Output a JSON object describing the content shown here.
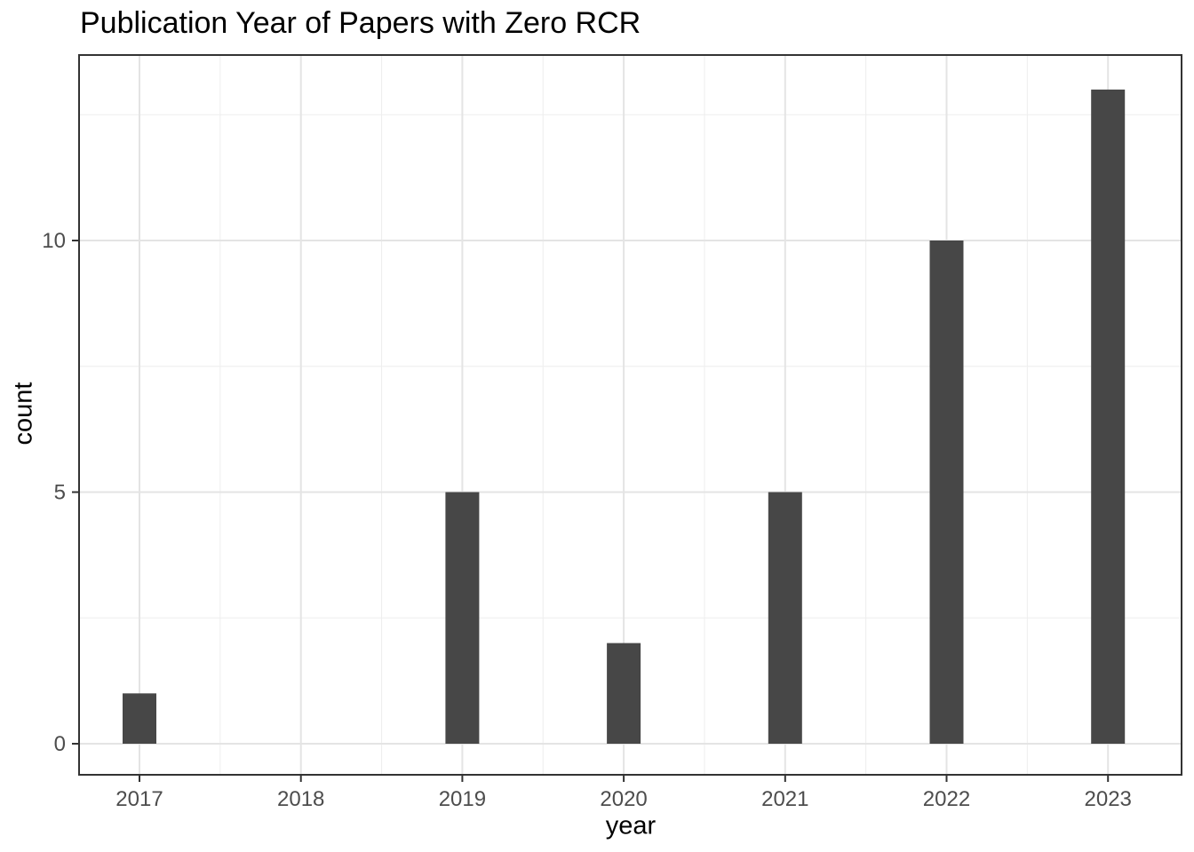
{
  "chart_data": {
    "type": "bar",
    "title": "Publication Year of Papers with Zero RCR",
    "xlabel": "year",
    "ylabel": "count",
    "categories": [
      "2017",
      "2018",
      "2019",
      "2020",
      "2021",
      "2022",
      "2023"
    ],
    "values": [
      1,
      0,
      5,
      2,
      5,
      10,
      13
    ],
    "yticks": [
      0,
      5,
      10
    ],
    "ylim": [
      -0.65,
      13.69
    ],
    "grid": "major and minor gridlines, light gray on white panel",
    "legend_position": "none"
  },
  "style": {
    "bar_fill": "#474747",
    "panel_border_color": "#333333",
    "axis_tick_color": "#333333",
    "grid_major_color": "#e4e4e4",
    "grid_minor_color": "#eeeeee",
    "tick_label_color": "#4d4d4d",
    "title_color": "#000000",
    "background": "#ffffff"
  }
}
